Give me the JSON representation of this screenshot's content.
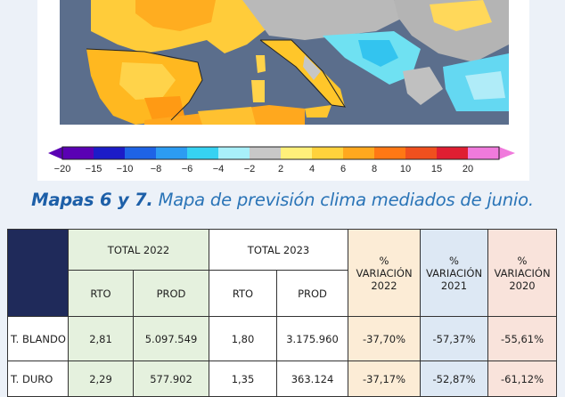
{
  "caption": {
    "bold": "Mapas 6 y 7.",
    "rest": " Mapa de previsión clima mediados de junio."
  },
  "legend": {
    "ticks": [
      "−20",
      "−15",
      "−10",
      "−8",
      "−6",
      "−4",
      "−2",
      "2",
      "4",
      "6",
      "8",
      "10",
      "15",
      "20"
    ],
    "colors": [
      "#5a00b4",
      "#1c1cc8",
      "#1e63e6",
      "#2c9cf2",
      "#36d2f2",
      "#a8f0fa",
      "#c8c8c8",
      "#fff07a",
      "#ffd23c",
      "#ffa81e",
      "#ff7814",
      "#f0501e",
      "#e01e32",
      "#f07adc"
    ]
  },
  "table": {
    "groups": [
      "TOTAL 2022",
      "TOTAL 2023"
    ],
    "sub": [
      "RTO",
      "PROD",
      "RTO",
      "PROD"
    ],
    "var_cols": [
      {
        "pct": "%",
        "label": "VARIACIÓN",
        "year": "2022"
      },
      {
        "pct": "%",
        "label": "VARIACIÓN",
        "year": "2021"
      },
      {
        "pct": "%",
        "label": "VARIACIÓN",
        "year": "2020"
      }
    ],
    "rows": [
      {
        "name": "T. BLANDO",
        "rto22": "2,81",
        "prod22": "5.097.549",
        "rto23": "1,80",
        "prod23": "3.175.960",
        "v22": "-37,70%",
        "v21": "-57,37%",
        "v20": "-55,61%"
      },
      {
        "name": "T. DURO",
        "rto22": "2,29",
        "prod22": "577.902",
        "rto23": "1,35",
        "prod23": "363.124",
        "v22": "-37,17%",
        "v21": "-52,87%",
        "v20": "-61,12%"
      }
    ]
  }
}
